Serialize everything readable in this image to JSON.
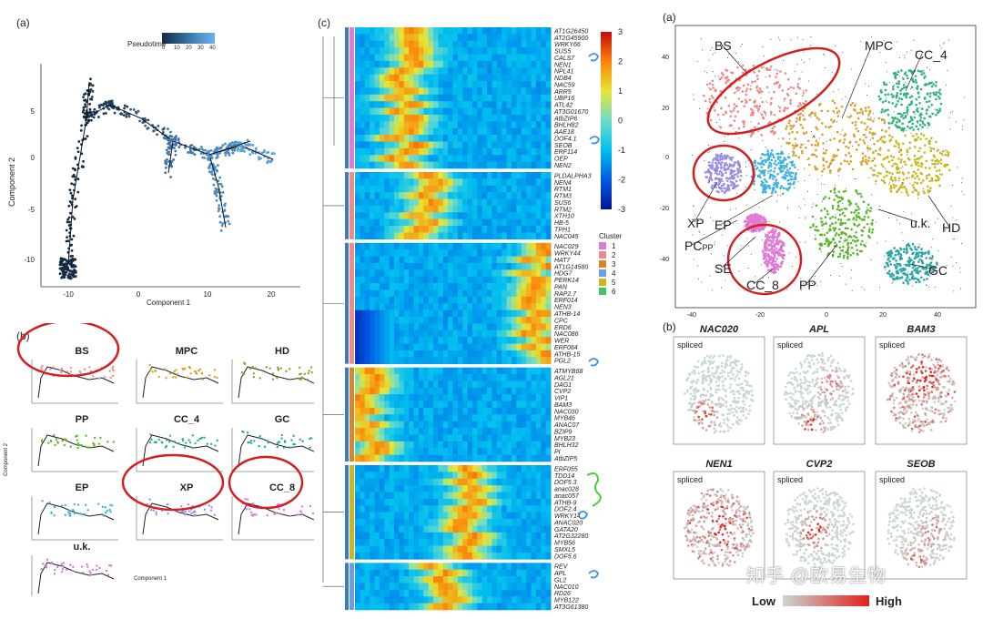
{
  "left": {
    "label_a": "(a)",
    "label_b": "(b)",
    "legend_title": "Pseudotime",
    "legend_ticks": [
      "0",
      "10",
      "20",
      "30",
      "40"
    ],
    "x_axis": "Component 1",
    "y_axis": "Component 2",
    "x_ticks": [
      "-10",
      "0",
      "10",
      "20"
    ],
    "y_ticks": [
      "5",
      "0",
      "-5",
      "-10"
    ],
    "small_panels": [
      {
        "name": "BS",
        "color": "#f28e8e"
      },
      {
        "name": "MPC",
        "color": "#d6a128"
      },
      {
        "name": "HD",
        "color": "#9a9a2a"
      },
      {
        "name": "PP",
        "color": "#5cb82c"
      },
      {
        "name": "CC_4",
        "color": "#2bb57a"
      },
      {
        "name": "GC",
        "color": "#2aa6a6"
      },
      {
        "name": "EP",
        "color": "#3fb3e0"
      },
      {
        "name": "XP",
        "color": "#9b8fe6"
      },
      {
        "name": "CC_8",
        "color": "#e07ad6"
      },
      {
        "name": "u.k.",
        "color": "#d977d2"
      }
    ],
    "small_x_axis": "Component 1",
    "small_y_axis": "Component 2"
  },
  "heatmap": {
    "label": "(c)",
    "scale_ticks": [
      "3",
      "2",
      "1",
      "0",
      "-1",
      "-2",
      "-3"
    ],
    "cluster_title": "Cluster",
    "cluster_items": [
      {
        "name": "1",
        "color": "#e07ad6"
      },
      {
        "name": "2",
        "color": "#f08a8a"
      },
      {
        "name": "3",
        "color": "#d8862a"
      },
      {
        "name": "4",
        "color": "#6f9ee0"
      },
      {
        "name": "5",
        "color": "#c9b81a"
      },
      {
        "name": "6",
        "color": "#3fc46a"
      }
    ],
    "blocks": [
      {
        "genes": [
          "AT1G26450",
          "AT2G45900",
          "WRKY66",
          "SUS5",
          "CALS7",
          "NEN1",
          "NPL41",
          "NDB4",
          "NAC59",
          "ARR5",
          "UBP16",
          "ATL42",
          "AT3G01670",
          "AtbZIP6",
          "BHLH82",
          "AAE18",
          "DOF4.1",
          "SEOB",
          "ERF114",
          "OEP",
          "NEN2"
        ]
      },
      {
        "genes": [
          "PLDALPHA3",
          "NEN4",
          "RTM1",
          "RTM3",
          "SUS6",
          "RTM2",
          "XTH10",
          "HB-5",
          "TPH1",
          "NAC045"
        ]
      },
      {
        "genes": [
          "NAC029",
          "WRKY44",
          "HAT7",
          "AT1G14580",
          "HDG7",
          "PERK14",
          "PAN",
          "RAP2.7",
          "ERF014",
          "NEN3",
          "ATHB-14",
          "CPC",
          "ERD6",
          "NAC086",
          "WER",
          "ERF064",
          "ATHB-15",
          "PGL2"
        ]
      },
      {
        "genes": [
          "ATMYB68",
          "AGL21",
          "DAG1",
          "CVP2",
          "VIP1",
          "BAM3",
          "NAC030",
          "MYB46",
          "ANAC07",
          "BZIP9",
          "MYB23",
          "BHLH32",
          "PI",
          "AtbZIP5"
        ]
      },
      {
        "genes": [
          "ERF055",
          "TDD14",
          "DOF5.3",
          "anac028",
          "anac057",
          "ATHB-9",
          "DOF2.4",
          "WRKY14",
          "ANAC020",
          "GATA20",
          "AT2G32280",
          "MYB56",
          "SMXL5",
          "DOF5.6"
        ]
      },
      {
        "genes": [
          "REV",
          "APL",
          "GL2",
          "NAC010",
          "RD26",
          "MYB122",
          "AT3G61380"
        ]
      }
    ]
  },
  "right": {
    "label_a": "(a)",
    "label_b": "(b)",
    "clusters": [
      {
        "name": "BS"
      },
      {
        "name": "MPC"
      },
      {
        "name": "CC_4"
      },
      {
        "name": "XP"
      },
      {
        "name": "EP"
      },
      {
        "name": "PCPP"
      },
      {
        "name": "SE"
      },
      {
        "name": "CC_8"
      },
      {
        "name": "PP"
      },
      {
        "name": "u.k."
      },
      {
        "name": "HD"
      },
      {
        "name": "GC"
      }
    ],
    "x_ticks": [
      "-40",
      "-20",
      "0",
      "20",
      "40"
    ],
    "y_ticks": [
      "40",
      "20",
      "0",
      "-20",
      "-40"
    ],
    "genes": [
      {
        "name": "NAC020",
        "tag": "spliced"
      },
      {
        "name": "APL",
        "tag": "spliced"
      },
      {
        "name": "BAM3",
        "tag": "spliced"
      },
      {
        "name": "NEN1",
        "tag": "spliced"
      },
      {
        "name": "CVP2",
        "tag": "spliced"
      },
      {
        "name": "SEOB",
        "tag": "spliced"
      }
    ],
    "legend_low": "Low",
    "legend_high": "High",
    "watermark": "知乎 @欧易生物"
  }
}
